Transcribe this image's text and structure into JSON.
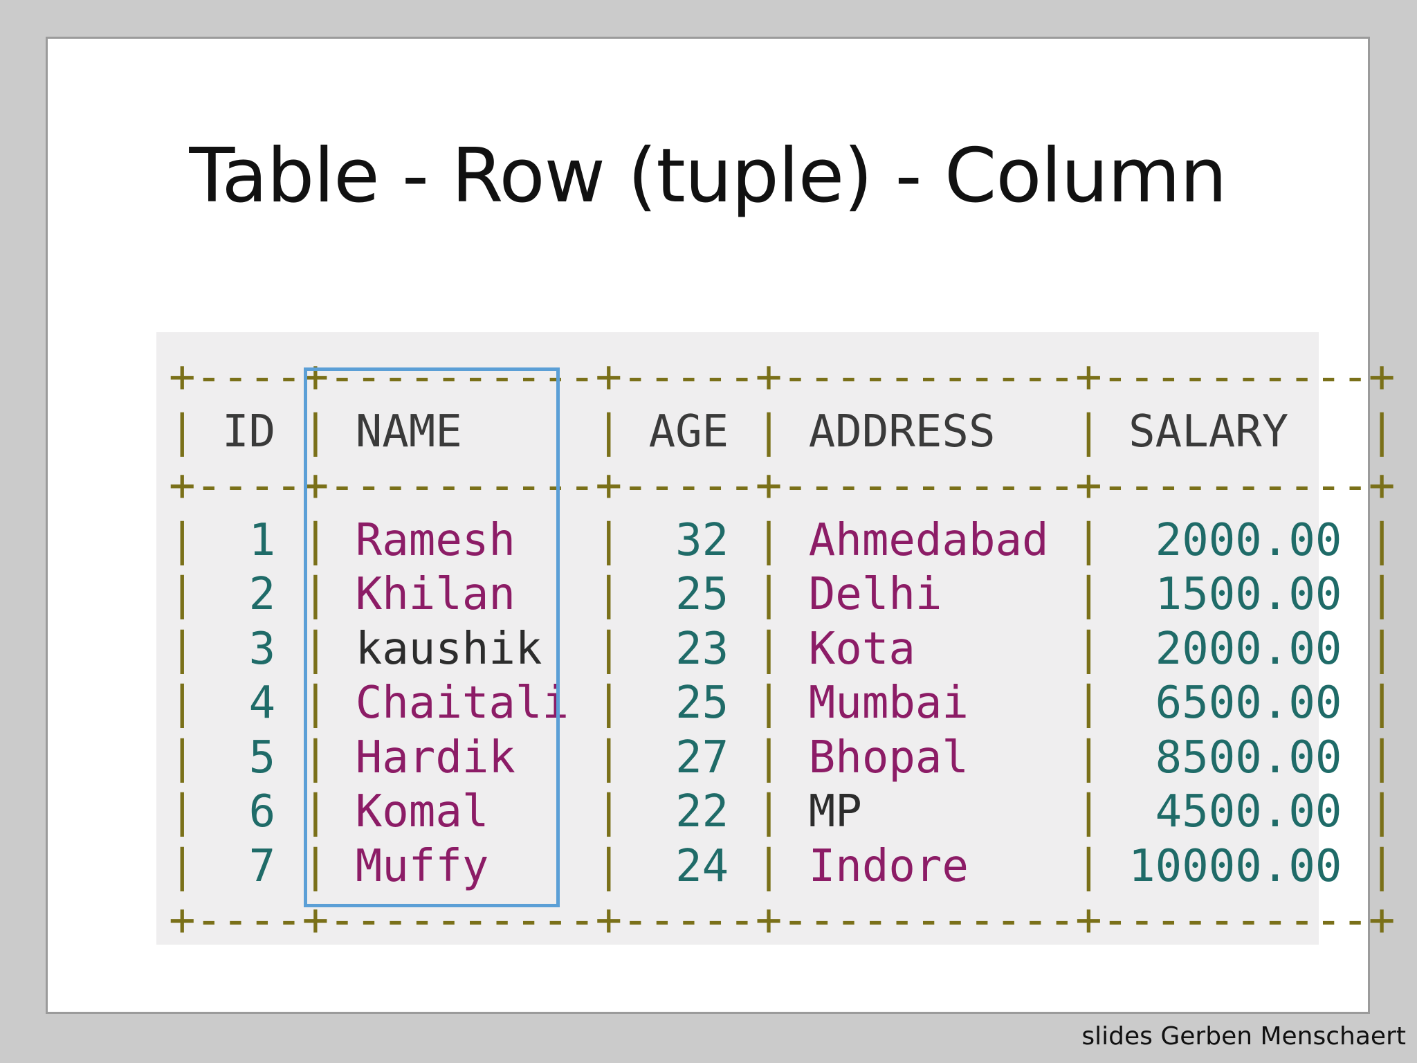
{
  "slide": {
    "title": "Table - Row (tuple) - Column",
    "credit": "slides Gerben Menschaert"
  },
  "table": {
    "headers": {
      "id": "ID",
      "name": "NAME",
      "age": "AGE",
      "address": "ADDRESS",
      "salary": "SALARY"
    },
    "rows": [
      {
        "id": "1",
        "name": "Ramesh",
        "age": "32",
        "address": "Ahmedabad",
        "salary": "2000.00"
      },
      {
        "id": "2",
        "name": "Khilan",
        "age": "25",
        "address": "Delhi",
        "salary": "1500.00"
      },
      {
        "id": "3",
        "name": "kaushik",
        "age": "23",
        "address": "Kota",
        "salary": "2000.00"
      },
      {
        "id": "4",
        "name": "Chaitali",
        "age": "25",
        "address": "Mumbai",
        "salary": "6500.00"
      },
      {
        "id": "5",
        "name": "Hardik",
        "age": "27",
        "address": "Bhopal",
        "salary": "8500.00"
      },
      {
        "id": "6",
        "name": "Komal",
        "age": "22",
        "address": "MP",
        "salary": "4500.00"
      },
      {
        "id": "7",
        "name": "Muffy",
        "age": "24",
        "address": "Indore",
        "salary": "10000.00"
      }
    ],
    "highlighted_column": "NAME",
    "colors": {
      "border_chars": "#7a7019",
      "numbers": "#1f6b68",
      "strings": "#8c1c66",
      "highlight_box": "#5b9fd6"
    }
  }
}
